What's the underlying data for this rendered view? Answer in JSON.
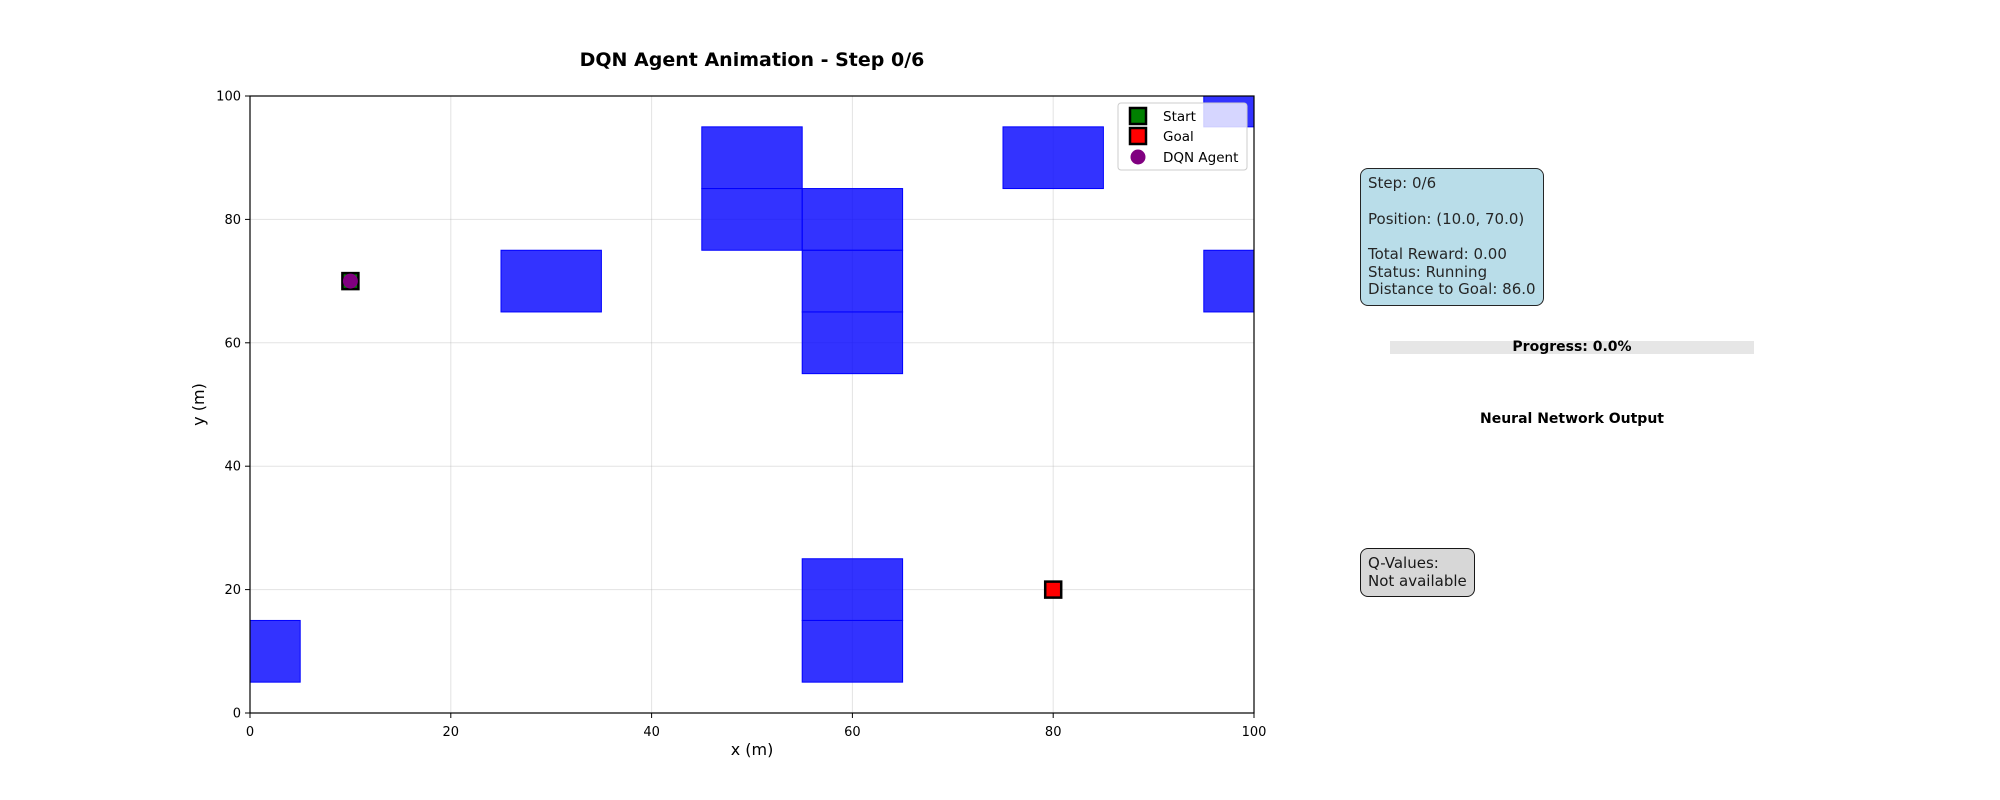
{
  "chart_data": {
    "type": "scatter",
    "title": "DQN Agent Animation - Step 0/6",
    "xlabel": "x (m)",
    "ylabel": "y (m)",
    "xlim": [
      0,
      100
    ],
    "ylim": [
      0,
      100
    ],
    "xticks": [
      0,
      20,
      40,
      60,
      80,
      100
    ],
    "yticks": [
      0,
      20,
      40,
      60,
      80,
      100
    ],
    "grid": true,
    "legend_position": "top-right",
    "obstacle_color": "#0000ff",
    "obstacles": [
      {
        "x": 45,
        "y": 85,
        "w": 10,
        "h": 10
      },
      {
        "x": 45,
        "y": 75,
        "w": 10,
        "h": 10
      },
      {
        "x": 55,
        "y": 75,
        "w": 10,
        "h": 10
      },
      {
        "x": 55,
        "y": 65,
        "w": 10,
        "h": 10
      },
      {
        "x": 55,
        "y": 55,
        "w": 10,
        "h": 10
      },
      {
        "x": 25,
        "y": 65,
        "w": 10,
        "h": 10
      },
      {
        "x": 75,
        "y": 85,
        "w": 10,
        "h": 10
      },
      {
        "x": 95,
        "y": 95,
        "w": 5,
        "h": 5
      },
      {
        "x": 95,
        "y": 65,
        "w": 5,
        "h": 10
      },
      {
        "x": 0,
        "y": 5,
        "w": 5,
        "h": 10
      },
      {
        "x": 55,
        "y": 15,
        "w": 10,
        "h": 10
      },
      {
        "x": 55,
        "y": 5,
        "w": 10,
        "h": 10
      }
    ],
    "start": {
      "x": 10,
      "y": 70,
      "color": "#008000"
    },
    "goal": {
      "x": 80,
      "y": 20,
      "color": "#ff0000"
    },
    "agent": {
      "x": 10,
      "y": 70,
      "color": "#800080"
    },
    "legend": [
      {
        "label": "Start",
        "marker": "square",
        "color": "#008000"
      },
      {
        "label": "Goal",
        "marker": "square",
        "color": "#ff0000"
      },
      {
        "label": "DQN Agent",
        "marker": "circle",
        "color": "#800080"
      }
    ]
  },
  "status": {
    "step": "Step: 0/6",
    "position": "Position: (10.0, 70.0)",
    "total_reward": "Total Reward: 0.00",
    "status": "Status: Running",
    "distance": "Distance to Goal: 86.0"
  },
  "progress": {
    "label": "Progress: 0.0%",
    "value": 0.0
  },
  "nn_title": "Neural Network Output",
  "qvalues": {
    "line1": "Q-Values:",
    "line2": "Not available"
  }
}
